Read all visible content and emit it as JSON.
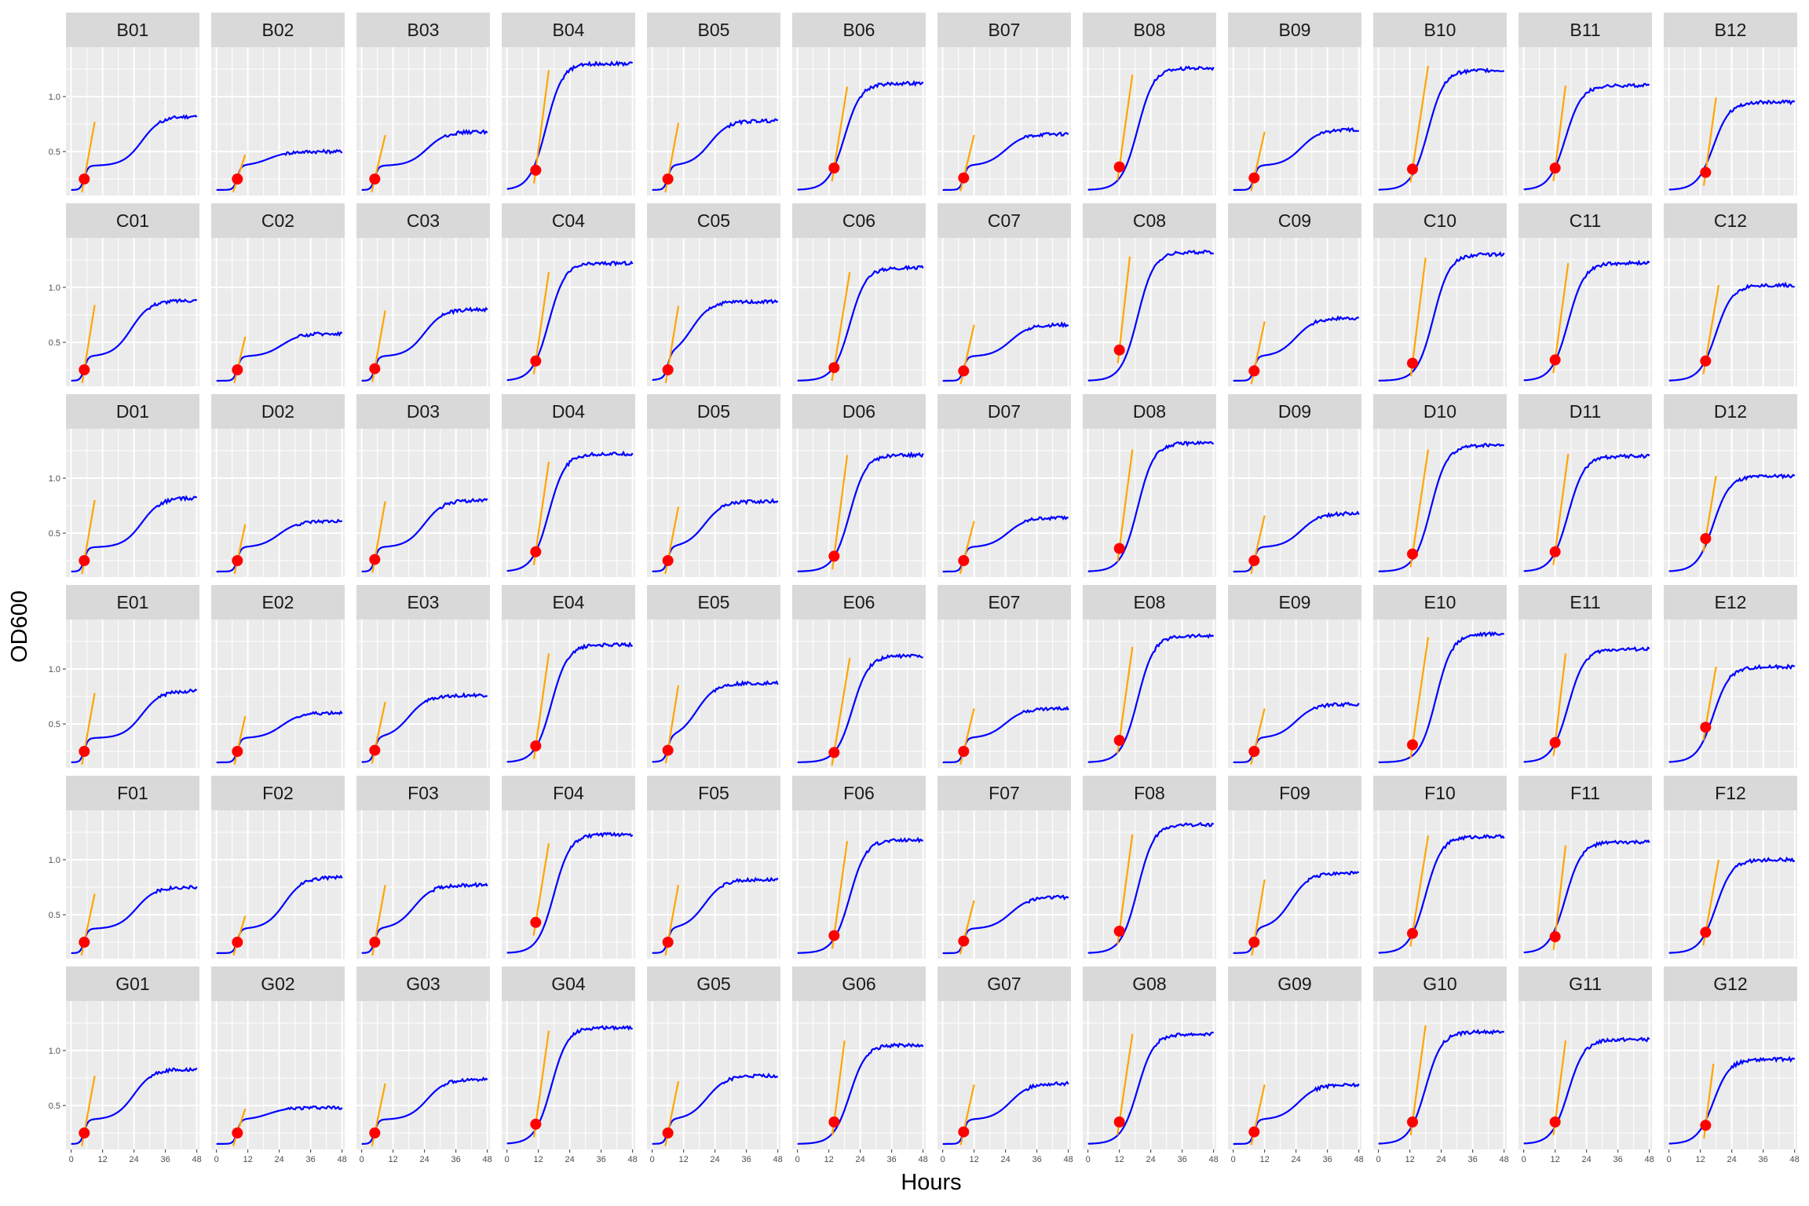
{
  "chart_data": {
    "type": "line",
    "xlabel": "Hours",
    "ylabel": "OD600",
    "xlim": [
      -2,
      49
    ],
    "ylim": [
      0.1,
      1.45
    ],
    "x_ticks": [
      0,
      12,
      24,
      36,
      48
    ],
    "y_ticks": [
      0.5,
      1.0
    ],
    "x_tick_labels": [
      "0",
      "12",
      "24",
      "36",
      "48"
    ],
    "y_tick_labels": [
      "0.5",
      "1.0"
    ],
    "layout": {
      "rows": 6,
      "cols": 12
    },
    "panels_per_row_with_y_labels": "first column",
    "colors": {
      "curve": "#0000ff",
      "tangent": "#ffa500",
      "point": "#ff0000",
      "panel_bg": "#ebebeb",
      "strip_bg": "#d9d9d9",
      "grid": "#ffffff"
    },
    "panels": [
      {
        "label": "B01",
        "type": "biphasic",
        "final": 0.82,
        "t_half": 27,
        "point": [
          5,
          0.25
        ],
        "tangent_end": [
          9,
          0.77
        ]
      },
      {
        "label": "B02",
        "type": "biphasic",
        "final": 0.5,
        "t_half": 20,
        "point": [
          8,
          0.25
        ],
        "tangent_end": [
          11,
          0.47
        ]
      },
      {
        "label": "B03",
        "type": "biphasic",
        "final": 0.68,
        "t_half": 25,
        "point": [
          5,
          0.25
        ],
        "tangent_end": [
          9,
          0.65
        ]
      },
      {
        "label": "B04",
        "type": "sigmoid",
        "final": 1.3,
        "t_half": 15,
        "point": [
          11,
          0.33
        ],
        "tangent_end": [
          16,
          1.24
        ]
      },
      {
        "label": "B05",
        "type": "biphasic",
        "final": 0.78,
        "t_half": 22,
        "point": [
          6,
          0.25
        ],
        "tangent_end": [
          10,
          0.76
        ]
      },
      {
        "label": "B06",
        "type": "sigmoid",
        "final": 1.12,
        "t_half": 18,
        "point": [
          14,
          0.35
        ],
        "tangent_end": [
          19,
          1.09
        ]
      },
      {
        "label": "B07",
        "type": "biphasic",
        "final": 0.66,
        "t_half": 24,
        "point": [
          8,
          0.26
        ],
        "tangent_end": [
          12,
          0.65
        ]
      },
      {
        "label": "B08",
        "type": "sigmoid",
        "final": 1.26,
        "t_half": 19,
        "point": [
          12,
          0.36
        ],
        "tangent_end": [
          17,
          1.2
        ]
      },
      {
        "label": "B09",
        "type": "biphasic",
        "final": 0.7,
        "t_half": 26,
        "point": [
          8,
          0.26
        ],
        "tangent_end": [
          12,
          0.68
        ]
      },
      {
        "label": "B10",
        "type": "sigmoid",
        "final": 1.24,
        "t_half": 19,
        "point": [
          13,
          0.34
        ],
        "tangent_end": [
          19,
          1.28
        ]
      },
      {
        "label": "B11",
        "type": "sigmoid",
        "final": 1.1,
        "t_half": 16,
        "point": [
          12,
          0.35
        ],
        "tangent_end": [
          16,
          1.1
        ]
      },
      {
        "label": "B12",
        "type": "sigmoid",
        "final": 0.95,
        "t_half": 17,
        "point": [
          14,
          0.31
        ],
        "tangent_end": [
          18,
          0.99
        ]
      },
      {
        "label": "C01",
        "type": "biphasic",
        "final": 0.88,
        "t_half": 23,
        "point": [
          5,
          0.25
        ],
        "tangent_end": [
          9,
          0.84
        ]
      },
      {
        "label": "C02",
        "type": "biphasic",
        "final": 0.58,
        "t_half": 25,
        "point": [
          8,
          0.25
        ],
        "tangent_end": [
          11,
          0.55
        ]
      },
      {
        "label": "C03",
        "type": "biphasic",
        "final": 0.8,
        "t_half": 24,
        "point": [
          5,
          0.26
        ],
        "tangent_end": [
          9,
          0.79
        ]
      },
      {
        "label": "C04",
        "type": "sigmoid",
        "final": 1.22,
        "t_half": 16,
        "point": [
          11,
          0.33
        ],
        "tangent_end": [
          16,
          1.14
        ]
      },
      {
        "label": "C05",
        "type": "biphasic",
        "final": 0.87,
        "t_half": 15,
        "point": [
          6,
          0.25
        ],
        "tangent_end": [
          10,
          0.83
        ]
      },
      {
        "label": "C06",
        "type": "sigmoid",
        "final": 1.18,
        "t_half": 20,
        "point": [
          14,
          0.27
        ],
        "tangent_end": [
          20,
          1.14
        ]
      },
      {
        "label": "C07",
        "type": "biphasic",
        "final": 0.66,
        "t_half": 26,
        "point": [
          8,
          0.24
        ],
        "tangent_end": [
          12,
          0.66
        ]
      },
      {
        "label": "C08",
        "type": "sigmoid",
        "final": 1.32,
        "t_half": 19,
        "point": [
          12,
          0.43
        ],
        "tangent_end": [
          16,
          1.28
        ]
      },
      {
        "label": "C09",
        "type": "biphasic",
        "final": 0.72,
        "t_half": 24,
        "point": [
          8,
          0.24
        ],
        "tangent_end": [
          12,
          0.69
        ]
      },
      {
        "label": "C10",
        "type": "sigmoid",
        "final": 1.3,
        "t_half": 21,
        "point": [
          13,
          0.31
        ],
        "tangent_end": [
          18,
          1.27
        ]
      },
      {
        "label": "C11",
        "type": "sigmoid",
        "final": 1.22,
        "t_half": 17,
        "point": [
          12,
          0.34
        ],
        "tangent_end": [
          17,
          1.22
        ]
      },
      {
        "label": "C12",
        "type": "sigmoid",
        "final": 1.02,
        "t_half": 18,
        "point": [
          14,
          0.33
        ],
        "tangent_end": [
          19,
          1.02
        ]
      },
      {
        "label": "D01",
        "type": "biphasic",
        "final": 0.82,
        "t_half": 27,
        "point": [
          5,
          0.25
        ],
        "tangent_end": [
          9,
          0.8
        ]
      },
      {
        "label": "D02",
        "type": "biphasic",
        "final": 0.61,
        "t_half": 24,
        "point": [
          8,
          0.25
        ],
        "tangent_end": [
          11,
          0.58
        ]
      },
      {
        "label": "D03",
        "type": "biphasic",
        "final": 0.8,
        "t_half": 24,
        "point": [
          5,
          0.26
        ],
        "tangent_end": [
          9,
          0.79
        ]
      },
      {
        "label": "D04",
        "type": "sigmoid",
        "final": 1.22,
        "t_half": 16,
        "point": [
          11,
          0.33
        ],
        "tangent_end": [
          16,
          1.15
        ]
      },
      {
        "label": "D05",
        "type": "biphasic",
        "final": 0.79,
        "t_half": 20,
        "point": [
          6,
          0.25
        ],
        "tangent_end": [
          10,
          0.74
        ]
      },
      {
        "label": "D06",
        "type": "sigmoid",
        "final": 1.21,
        "t_half": 20,
        "point": [
          14,
          0.29
        ],
        "tangent_end": [
          19,
          1.21
        ]
      },
      {
        "label": "D07",
        "type": "biphasic",
        "final": 0.64,
        "t_half": 25,
        "point": [
          8,
          0.25
        ],
        "tangent_end": [
          12,
          0.61
        ]
      },
      {
        "label": "D08",
        "type": "sigmoid",
        "final": 1.32,
        "t_half": 19,
        "point": [
          12,
          0.36
        ],
        "tangent_end": [
          17,
          1.26
        ]
      },
      {
        "label": "D09",
        "type": "biphasic",
        "final": 0.68,
        "t_half": 26,
        "point": [
          8,
          0.25
        ],
        "tangent_end": [
          12,
          0.66
        ]
      },
      {
        "label": "D10",
        "type": "sigmoid",
        "final": 1.3,
        "t_half": 20,
        "point": [
          13,
          0.31
        ],
        "tangent_end": [
          19,
          1.26
        ]
      },
      {
        "label": "D11",
        "type": "sigmoid",
        "final": 1.2,
        "t_half": 17,
        "point": [
          12,
          0.33
        ],
        "tangent_end": [
          17,
          1.22
        ]
      },
      {
        "label": "D12",
        "type": "sigmoid",
        "final": 1.02,
        "t_half": 17,
        "point": [
          14,
          0.45
        ],
        "tangent_end": [
          18,
          1.02
        ]
      },
      {
        "label": "E01",
        "type": "biphasic",
        "final": 0.8,
        "t_half": 27,
        "point": [
          5,
          0.25
        ],
        "tangent_end": [
          9,
          0.78
        ]
      },
      {
        "label": "E02",
        "type": "biphasic",
        "final": 0.6,
        "t_half": 25,
        "point": [
          8,
          0.25
        ],
        "tangent_end": [
          11,
          0.57
        ]
      },
      {
        "label": "E03",
        "type": "biphasic",
        "final": 0.76,
        "t_half": 18,
        "point": [
          5,
          0.26
        ],
        "tangent_end": [
          9,
          0.7
        ]
      },
      {
        "label": "E04",
        "type": "sigmoid",
        "final": 1.22,
        "t_half": 17,
        "point": [
          11,
          0.3
        ],
        "tangent_end": [
          16,
          1.14
        ]
      },
      {
        "label": "E05",
        "type": "biphasic",
        "final": 0.87,
        "t_half": 17,
        "point": [
          6,
          0.26
        ],
        "tangent_end": [
          10,
          0.85
        ]
      },
      {
        "label": "E06",
        "type": "sigmoid",
        "final": 1.12,
        "t_half": 21,
        "point": [
          14,
          0.24
        ],
        "tangent_end": [
          20,
          1.1
        ]
      },
      {
        "label": "E07",
        "type": "biphasic",
        "final": 0.64,
        "t_half": 24,
        "point": [
          8,
          0.25
        ],
        "tangent_end": [
          12,
          0.64
        ]
      },
      {
        "label": "E08",
        "type": "sigmoid",
        "final": 1.3,
        "t_half": 19,
        "point": [
          12,
          0.35
        ],
        "tangent_end": [
          17,
          1.2
        ]
      },
      {
        "label": "E09",
        "type": "biphasic",
        "final": 0.68,
        "t_half": 24,
        "point": [
          8,
          0.25
        ],
        "tangent_end": [
          12,
          0.64
        ]
      },
      {
        "label": "E10",
        "type": "sigmoid",
        "final": 1.32,
        "t_half": 22,
        "point": [
          13,
          0.31
        ],
        "tangent_end": [
          19,
          1.29
        ]
      },
      {
        "label": "E11",
        "type": "sigmoid",
        "final": 1.18,
        "t_half": 17,
        "point": [
          12,
          0.33
        ],
        "tangent_end": [
          16,
          1.14
        ]
      },
      {
        "label": "E12",
        "type": "sigmoid",
        "final": 1.02,
        "t_half": 17,
        "point": [
          14,
          0.47
        ],
        "tangent_end": [
          18,
          1.02
        ]
      },
      {
        "label": "F01",
        "type": "biphasic",
        "final": 0.75,
        "t_half": 25,
        "point": [
          5,
          0.25
        ],
        "tangent_end": [
          9,
          0.69
        ]
      },
      {
        "label": "F02",
        "type": "biphasic",
        "final": 0.84,
        "t_half": 26,
        "point": [
          8,
          0.25
        ],
        "tangent_end": [
          11,
          0.49
        ]
      },
      {
        "label": "F03",
        "type": "biphasic",
        "final": 0.77,
        "t_half": 20,
        "point": [
          5,
          0.25
        ],
        "tangent_end": [
          9,
          0.77
        ]
      },
      {
        "label": "F04",
        "type": "sigmoid",
        "final": 1.23,
        "t_half": 18,
        "point": [
          11,
          0.43
        ],
        "tangent_end": [
          16,
          1.15
        ]
      },
      {
        "label": "F05",
        "type": "biphasic",
        "final": 0.82,
        "t_half": 20,
        "point": [
          6,
          0.25
        ],
        "tangent_end": [
          10,
          0.77
        ]
      },
      {
        "label": "F06",
        "type": "sigmoid",
        "final": 1.18,
        "t_half": 20,
        "point": [
          14,
          0.31
        ],
        "tangent_end": [
          19,
          1.17
        ]
      },
      {
        "label": "F07",
        "type": "biphasic",
        "final": 0.66,
        "t_half": 26,
        "point": [
          8,
          0.26
        ],
        "tangent_end": [
          12,
          0.63
        ]
      },
      {
        "label": "F08",
        "type": "sigmoid",
        "final": 1.32,
        "t_half": 19,
        "point": [
          12,
          0.35
        ],
        "tangent_end": [
          17,
          1.23
        ]
      },
      {
        "label": "F09",
        "type": "biphasic",
        "final": 0.88,
        "t_half": 22,
        "point": [
          8,
          0.25
        ],
        "tangent_end": [
          12,
          0.82
        ]
      },
      {
        "label": "F10",
        "type": "sigmoid",
        "final": 1.21,
        "t_half": 18,
        "point": [
          13,
          0.33
        ],
        "tangent_end": [
          19,
          1.22
        ]
      },
      {
        "label": "F11",
        "type": "sigmoid",
        "final": 1.16,
        "t_half": 16,
        "point": [
          12,
          0.3
        ],
        "tangent_end": [
          16,
          1.13
        ]
      },
      {
        "label": "F12",
        "type": "sigmoid",
        "final": 1.0,
        "t_half": 18,
        "point": [
          14,
          0.34
        ],
        "tangent_end": [
          19,
          1.0
        ]
      },
      {
        "label": "G01",
        "type": "biphasic",
        "final": 0.83,
        "t_half": 24,
        "point": [
          5,
          0.25
        ],
        "tangent_end": [
          9,
          0.77
        ]
      },
      {
        "label": "G02",
        "type": "biphasic",
        "final": 0.48,
        "t_half": 20,
        "point": [
          8,
          0.25
        ],
        "tangent_end": [
          11,
          0.47
        ]
      },
      {
        "label": "G03",
        "type": "biphasic",
        "final": 0.74,
        "t_half": 25,
        "point": [
          5,
          0.25
        ],
        "tangent_end": [
          9,
          0.7
        ]
      },
      {
        "label": "G04",
        "type": "sigmoid",
        "final": 1.21,
        "t_half": 17,
        "point": [
          11,
          0.33
        ],
        "tangent_end": [
          16,
          1.18
        ]
      },
      {
        "label": "G05",
        "type": "biphasic",
        "final": 0.77,
        "t_half": 21,
        "point": [
          6,
          0.25
        ],
        "tangent_end": [
          10,
          0.72
        ]
      },
      {
        "label": "G06",
        "type": "sigmoid",
        "final": 1.05,
        "t_half": 20,
        "point": [
          14,
          0.35
        ],
        "tangent_end": [
          18,
          1.09
        ]
      },
      {
        "label": "G07",
        "type": "biphasic",
        "final": 0.7,
        "t_half": 26,
        "point": [
          8,
          0.26
        ],
        "tangent_end": [
          12,
          0.69
        ]
      },
      {
        "label": "G08",
        "type": "sigmoid",
        "final": 1.15,
        "t_half": 19,
        "point": [
          12,
          0.35
        ],
        "tangent_end": [
          17,
          1.15
        ]
      },
      {
        "label": "G09",
        "type": "biphasic",
        "final": 0.69,
        "t_half": 25,
        "point": [
          8,
          0.26
        ],
        "tangent_end": [
          12,
          0.69
        ]
      },
      {
        "label": "G10",
        "type": "sigmoid",
        "final": 1.17,
        "t_half": 18,
        "point": [
          13,
          0.35
        ],
        "tangent_end": [
          18,
          1.23
        ]
      },
      {
        "label": "G11",
        "type": "sigmoid",
        "final": 1.1,
        "t_half": 17,
        "point": [
          12,
          0.35
        ],
        "tangent_end": [
          16,
          1.09
        ]
      },
      {
        "label": "G12",
        "type": "sigmoid",
        "final": 0.92,
        "t_half": 17,
        "point": [
          14,
          0.32
        ],
        "tangent_end": [
          17,
          0.88
        ]
      }
    ]
  }
}
